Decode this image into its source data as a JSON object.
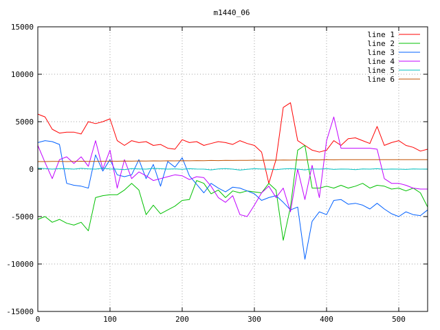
{
  "chart_data": {
    "type": "line",
    "title": "m1440_06",
    "xlabel": "",
    "ylabel": "",
    "xlim": [
      0,
      540
    ],
    "ylim": [
      -15000,
      15000
    ],
    "x_ticks": [
      0,
      100,
      200,
      300,
      400,
      500
    ],
    "y_ticks": [
      -15000,
      -10000,
      -5000,
      0,
      5000,
      10000,
      15000
    ],
    "grid": true,
    "legend_position": "top-right",
    "x": [
      0,
      10,
      20,
      30,
      40,
      50,
      60,
      70,
      80,
      90,
      100,
      110,
      120,
      130,
      140,
      150,
      160,
      170,
      180,
      190,
      200,
      210,
      220,
      230,
      240,
      250,
      260,
      270,
      280,
      290,
      300,
      310,
      320,
      330,
      340,
      350,
      360,
      370,
      380,
      390,
      400,
      410,
      420,
      430,
      440,
      450,
      460,
      470,
      480,
      490,
      500,
      510,
      520,
      530,
      540
    ],
    "series": [
      {
        "name": "line 1",
        "color": "#ff0000",
        "values": [
          5800,
          5500,
          4200,
          3800,
          3900,
          3900,
          3700,
          5000,
          4800,
          5000,
          5300,
          3000,
          2500,
          3000,
          2800,
          2900,
          2500,
          2600,
          2200,
          2100,
          3100,
          2800,
          2900,
          2500,
          2700,
          2900,
          2800,
          2600,
          3000,
          2700,
          2500,
          1800,
          -1500,
          1000,
          6500,
          7000,
          3000,
          2500,
          2000,
          1800,
          2000,
          3000,
          2500,
          3200,
          3300,
          3000,
          2700,
          4500,
          2500,
          2800,
          3000,
          2500,
          2300,
          1900,
          2100
        ]
      },
      {
        "name": "line 2",
        "color": "#00c000",
        "values": [
          -5300,
          -5000,
          -5600,
          -5300,
          -5700,
          -5900,
          -5600,
          -6500,
          -3000,
          -2800,
          -2700,
          -2700,
          -2200,
          -1500,
          -2200,
          -4800,
          -3800,
          -4700,
          -4300,
          -3900,
          -3300,
          -3200,
          -1200,
          -1500,
          -2600,
          -2200,
          -3000,
          -2300,
          -2500,
          -2300,
          -2400,
          -2500,
          -1500,
          -2200,
          -7500,
          -4000,
          2000,
          2500,
          -2000,
          -2000,
          -1800,
          -2000,
          -1700,
          -2000,
          -1800,
          -1500,
          -2000,
          -1700,
          -1800,
          -2100,
          -2000,
          -2300,
          -2000,
          -2500,
          -4000
        ]
      },
      {
        "name": "line 3",
        "color": "#0060ff",
        "values": [
          2800,
          3000,
          2900,
          2600,
          -1500,
          -1700,
          -1800,
          -2000,
          1500,
          -200,
          1000,
          -600,
          -800,
          -600,
          1000,
          -1000,
          500,
          -1800,
          800,
          200,
          1200,
          -700,
          -1600,
          -2500,
          -1500,
          -2000,
          -2400,
          -1900,
          -2000,
          -2300,
          -2600,
          -3300,
          -3000,
          -2800,
          -3500,
          -4300,
          -4000,
          -9500,
          -5500,
          -4500,
          -4800,
          -3300,
          -3200,
          -3700,
          -3600,
          -3800,
          -4200,
          -3600,
          -4200,
          -4700,
          -5000,
          -4500,
          -4800,
          -4900,
          -4300
        ]
      },
      {
        "name": "line 4",
        "color": "#c000ff",
        "values": [
          2500,
          700,
          -1000,
          1000,
          1300,
          600,
          1300,
          300,
          3000,
          0,
          2000,
          -2000,
          1000,
          -1000,
          -300,
          -700,
          -1200,
          -1000,
          -800,
          -600,
          -700,
          -1100,
          -800,
          -900,
          -1800,
          -3000,
          -3500,
          -2800,
          -4800,
          -5000,
          -3800,
          -2500,
          -1800,
          -3000,
          -2000,
          -4500,
          0,
          -3200,
          400,
          -3000,
          3000,
          5500,
          2200,
          2200,
          2200,
          2200,
          2200,
          2100,
          -1000,
          -1500,
          -1500,
          -1700,
          -2000,
          -2100,
          -2100
        ]
      },
      {
        "name": "line 5",
        "color": "#00c0c0",
        "values": [
          100,
          50,
          0,
          60,
          40,
          0,
          80,
          30,
          0,
          100,
          20,
          0,
          -50,
          60,
          20,
          0,
          80,
          40,
          0,
          30,
          -20,
          40,
          10,
          0,
          -80,
          20,
          50,
          0,
          -100,
          -20,
          40,
          10,
          0,
          -50,
          20,
          60,
          0,
          -80,
          20,
          0,
          40,
          -30,
          10,
          0,
          -60,
          20,
          0,
          40,
          -20,
          10,
          0,
          -30,
          20,
          0,
          10
        ]
      },
      {
        "name": "line 6",
        "color": "#c05000",
        "values": [
          800,
          800,
          820,
          810,
          800,
          820,
          830,
          820,
          810,
          830,
          840,
          830,
          850,
          840,
          860,
          850,
          870,
          860,
          880,
          870,
          890,
          880,
          900,
          890,
          910,
          900,
          920,
          910,
          930,
          920,
          940,
          930,
          950,
          940,
          960,
          950,
          970,
          960,
          980,
          970,
          990,
          980,
          1000,
          990,
          1000,
          990,
          1000,
          990,
          1000,
          990,
          1000,
          990,
          1000,
          990,
          990
        ]
      }
    ]
  }
}
